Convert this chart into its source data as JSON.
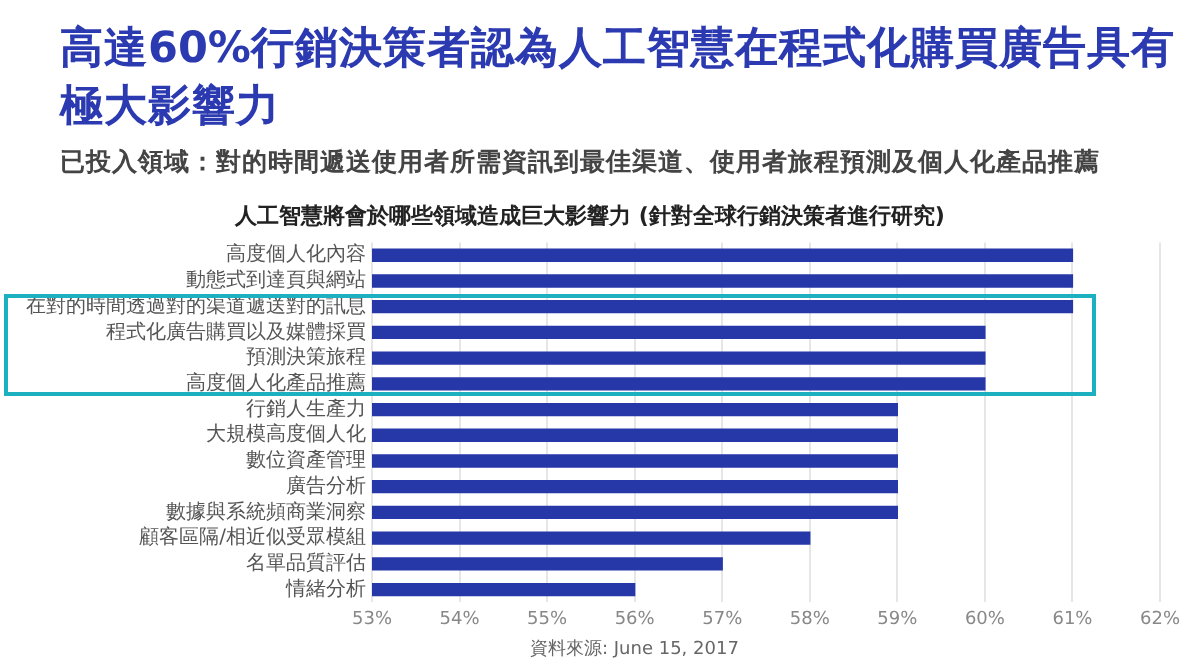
{
  "chart_data": {
    "type": "bar",
    "orientation": "horizontal",
    "title": "高達60%行銷決策者認為人工智慧在程式化購買廣告具有極大影響力",
    "subtitle": "已投入領域：對的時間遞送使用者所需資訊到最佳渠道、使用者旅程預測及個人化產品推薦",
    "categories": [
      "高度個人化內容",
      "動態式到達頁與網站",
      "在對的時間透過對的渠道遞送對的訊息",
      "程式化廣告購買以及媒體採買",
      "預測決策旅程",
      "高度個人化產品推薦",
      "行銷人生產力",
      "大規模高度個人化",
      "數位資產管理",
      "廣告分析",
      "數據與系統頻商業洞察",
      "顧客區隔/相近似受眾模組",
      "名單品質評估",
      "情緒分析"
    ],
    "series": [
      {
        "name": "人工智慧將會於哪些領域造成巨大影響力 (針對全球行銷決策者進行研究)",
        "color": "#2637a8",
        "values": [
          61,
          61,
          61,
          60,
          60,
          60,
          59,
          59,
          59,
          59,
          59,
          58,
          57,
          56
        ]
      }
    ],
    "xlim": [
      53,
      62
    ],
    "xticks": [
      {
        "value": 53,
        "label": "53%"
      },
      {
        "value": 54,
        "label": "54%"
      },
      {
        "value": 55,
        "label": "55%"
      },
      {
        "value": 56,
        "label": "56%"
      },
      {
        "value": 57,
        "label": "57%"
      },
      {
        "value": 58,
        "label": "58%"
      },
      {
        "value": 59,
        "label": "59%"
      },
      {
        "value": 60,
        "label": "60%"
      },
      {
        "value": 61,
        "label": "61%"
      },
      {
        "value": 62,
        "label": "62%"
      }
    ],
    "grid": "x",
    "legend": false,
    "annotations": [
      "資料來源: June 15, 2017"
    ]
  }
}
